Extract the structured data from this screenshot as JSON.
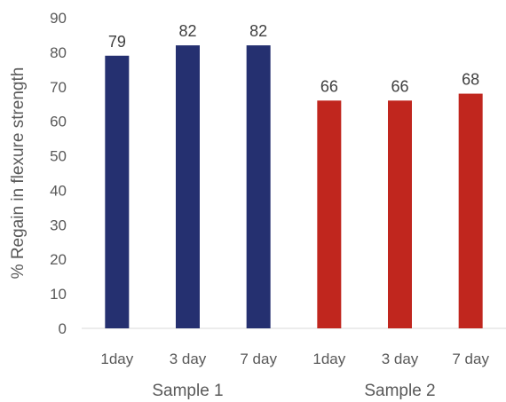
{
  "chart_data": {
    "type": "bar",
    "title": "",
    "xlabel": "",
    "ylabel": "% Regain in flexure strength",
    "ylim": [
      0,
      90
    ],
    "yticks": [
      0,
      10,
      20,
      30,
      40,
      50,
      60,
      70,
      80,
      90
    ],
    "grid": false,
    "legend": "none",
    "groups": [
      {
        "name": "Sample 1",
        "color": "#253070",
        "bars": [
          {
            "label": "1day",
            "value": 79
          },
          {
            "label": "3 day",
            "value": 82
          },
          {
            "label": "7 day",
            "value": 82
          }
        ]
      },
      {
        "name": "Sample 2",
        "color": "#c0261e",
        "bars": [
          {
            "label": "1day",
            "value": 66
          },
          {
            "label": "3 day",
            "value": 66
          },
          {
            "label": "7 day",
            "value": 68
          }
        ]
      }
    ]
  }
}
